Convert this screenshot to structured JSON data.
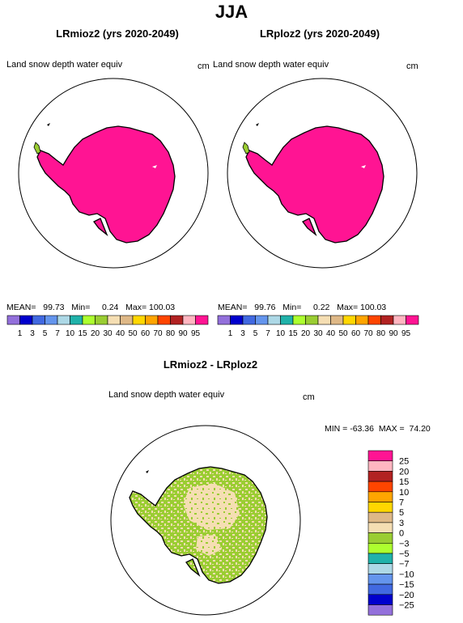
{
  "season": "JJA",
  "panels": [
    {
      "title": "LRmioz2 (yrs 2020-2049)",
      "variable": "Land snow depth water equiv",
      "unit": "cm",
      "stats": {
        "mean_label": "MEAN=",
        "mean": "99.73",
        "min_label": "Min=",
        "min": "0.24",
        "max_label": "Max=",
        "max": "100.03"
      },
      "fill_color": "#ff1493"
    },
    {
      "title": "LRploz2 (yrs 2020-2049)",
      "variable": "Land snow depth water equiv",
      "unit": "cm",
      "stats": {
        "mean_label": "MEAN=",
        "mean": "99.76",
        "min_label": "Min=",
        "min": "0.22",
        "max_label": "Max=",
        "max": "100.03"
      },
      "fill_color": "#ff1493"
    }
  ],
  "colorbar_top": {
    "labels": [
      "1",
      "3",
      "5",
      "7",
      "10",
      "15",
      "20",
      "30",
      "40",
      "50",
      "60",
      "70",
      "80",
      "90",
      "95"
    ],
    "colors": [
      "#9370db",
      "#0000cd",
      "#4169e1",
      "#6495ed",
      "#add8e6",
      "#20b2aa",
      "#adff2f",
      "#9acd32",
      "#f5deb3",
      "#deb887",
      "#ffd700",
      "#ffa500",
      "#ff4500",
      "#b22222",
      "#ffb6c1",
      "#ff1493"
    ]
  },
  "diff": {
    "title": "LRmioz2 - LRploz2",
    "variable": "Land snow depth water equiv",
    "unit": "cm",
    "min_label": "MIN =",
    "min": "-63.36",
    "max_label": "MAX =",
    "max": "74.20",
    "dominant_colors": [
      "#9acd32",
      "#f5deb3"
    ]
  },
  "colorbar_diff": {
    "labels": [
      "25",
      "20",
      "15",
      "10",
      "7",
      "5",
      "3",
      "0",
      "−3",
      "−5",
      "−7",
      "−10",
      "−15",
      "−20",
      "−25"
    ],
    "colors": [
      "#ff1493",
      "#ffb6c1",
      "#b22222",
      "#ff4500",
      "#ffa500",
      "#ffd700",
      "#deb887",
      "#f5deb3",
      "#9acd32",
      "#adff2f",
      "#20b2aa",
      "#add8e6",
      "#6495ed",
      "#4169e1",
      "#0000cd",
      "#9370db"
    ]
  }
}
